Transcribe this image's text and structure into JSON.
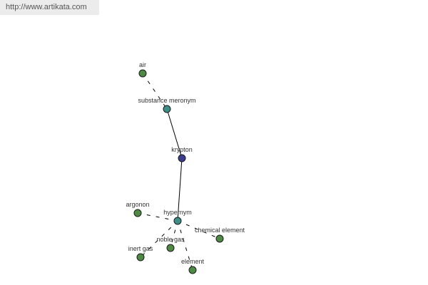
{
  "watermark": "http://www.artikata.com",
  "colors": {
    "center": "#3d3d8f",
    "relation": "#3e8f8a",
    "leaf": "#4f8a44"
  },
  "nodes": [
    {
      "id": "air",
      "label": "air",
      "kind": "leaf"
    },
    {
      "id": "substance-meronym",
      "label": "substance meronym",
      "kind": "relation"
    },
    {
      "id": "krypton",
      "label": "krypton",
      "kind": "center"
    },
    {
      "id": "hypernym",
      "label": "hypernym",
      "kind": "relation"
    },
    {
      "id": "argonon",
      "label": "argonon",
      "kind": "leaf"
    },
    {
      "id": "chemical-element",
      "label": "chemical element",
      "kind": "leaf"
    },
    {
      "id": "noble-gas",
      "label": "noble gas",
      "kind": "leaf"
    },
    {
      "id": "inert-gas",
      "label": "inert gas",
      "kind": "leaf"
    },
    {
      "id": "element",
      "label": "element",
      "kind": "leaf"
    }
  ],
  "edges": [
    {
      "from": "air",
      "to": "substance-meronym",
      "style": "dashed"
    },
    {
      "from": "substance-meronym",
      "to": "krypton",
      "style": "solid"
    },
    {
      "from": "krypton",
      "to": "hypernym",
      "style": "solid"
    },
    {
      "from": "hypernym",
      "to": "argonon",
      "style": "dashed"
    },
    {
      "from": "hypernym",
      "to": "chemical-element",
      "style": "dashed"
    },
    {
      "from": "hypernym",
      "to": "noble-gas",
      "style": "dashed"
    },
    {
      "from": "hypernym",
      "to": "inert-gas",
      "style": "dashed"
    },
    {
      "from": "hypernym",
      "to": "element",
      "style": "dashed"
    }
  ]
}
